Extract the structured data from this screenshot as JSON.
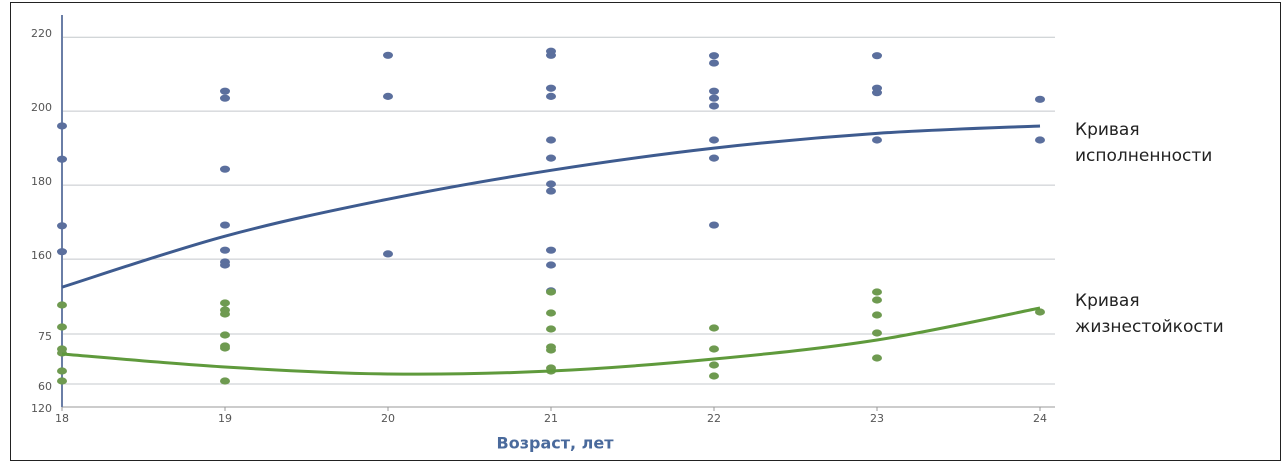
{
  "chart_data": {
    "type": "scatter",
    "x_label": "Возраст, лет",
    "xlim": [
      18,
      24
    ],
    "xticks": [
      18,
      19,
      20,
      21,
      22,
      23,
      24
    ],
    "ylim": [
      120,
      226
    ],
    "yticks": [
      120,
      160,
      180,
      200,
      220
    ],
    "y2lim": [
      53.1,
      170.7
    ],
    "y2ticks": [
      60,
      75
    ],
    "grid": true,
    "series": [
      {
        "type": "scatter",
        "color": "#5b6f9d",
        "x": [
          18,
          18,
          18,
          18,
          19,
          19,
          19,
          19,
          19,
          19,
          19,
          20,
          20,
          20,
          21,
          21,
          21,
          21,
          21,
          21,
          21,
          21,
          21,
          21,
          21,
          22,
          22,
          22,
          22,
          22,
          22,
          22,
          22,
          23,
          23,
          23,
          23,
          24,
          24
        ],
        "values": [
          196,
          187,
          169,
          162,
          205.4,
          203.5,
          184.3,
          169.2,
          162.4,
          159.2,
          158.4,
          215.1,
          204,
          161.4,
          216.2,
          215.1,
          206.2,
          204,
          192.2,
          187.3,
          180.3,
          178.4,
          162.4,
          158.4,
          151.4,
          215,
          213,
          205.4,
          203.5,
          201.4,
          192.2,
          187.3,
          169.2,
          215,
          206.2,
          205,
          192.2,
          203.2,
          192.2
        ]
      },
      {
        "type": "scatter",
        "color": "#6e9a50",
        "axis": "y2",
        "x": [
          18,
          18,
          18,
          18,
          18,
          18,
          19,
          19,
          19,
          19,
          19,
          19,
          19,
          21,
          21,
          21,
          21,
          21,
          21,
          21,
          22,
          22,
          22,
          22,
          23,
          23,
          23,
          23,
          23,
          24
        ],
        "values": [
          83.7,
          77.1,
          70.5,
          69.3,
          63.9,
          60.9,
          84.3,
          82.2,
          81,
          74.7,
          71.4,
          70.8,
          60.9,
          87.6,
          81.3,
          76.5,
          71.1,
          70.2,
          64.8,
          63.9,
          76.8,
          70.5,
          65.7,
          62.4,
          87.6,
          85.2,
          80.7,
          75.3,
          67.8,
          81.6
        ]
      },
      {
        "type": "line",
        "color": "#3e5b8f",
        "x": [
          18,
          19,
          20,
          21,
          22,
          23,
          24
        ],
        "values": [
          152.4,
          166.2,
          176.2,
          184,
          190,
          194,
          196
        ]
      },
      {
        "type": "line",
        "color": "#5f9a3c",
        "axis": "y2",
        "x": [
          18,
          19,
          20,
          21,
          22,
          23,
          24
        ],
        "values": [
          69,
          65.1,
          63,
          63.9,
          67.5,
          73.2,
          82.8
        ]
      }
    ],
    "annotations": [
      {
        "lines": [
          "Кривая",
          "исполненности"
        ]
      },
      {
        "lines": [
          "Кривая",
          "жизнестойкости"
        ]
      }
    ]
  }
}
